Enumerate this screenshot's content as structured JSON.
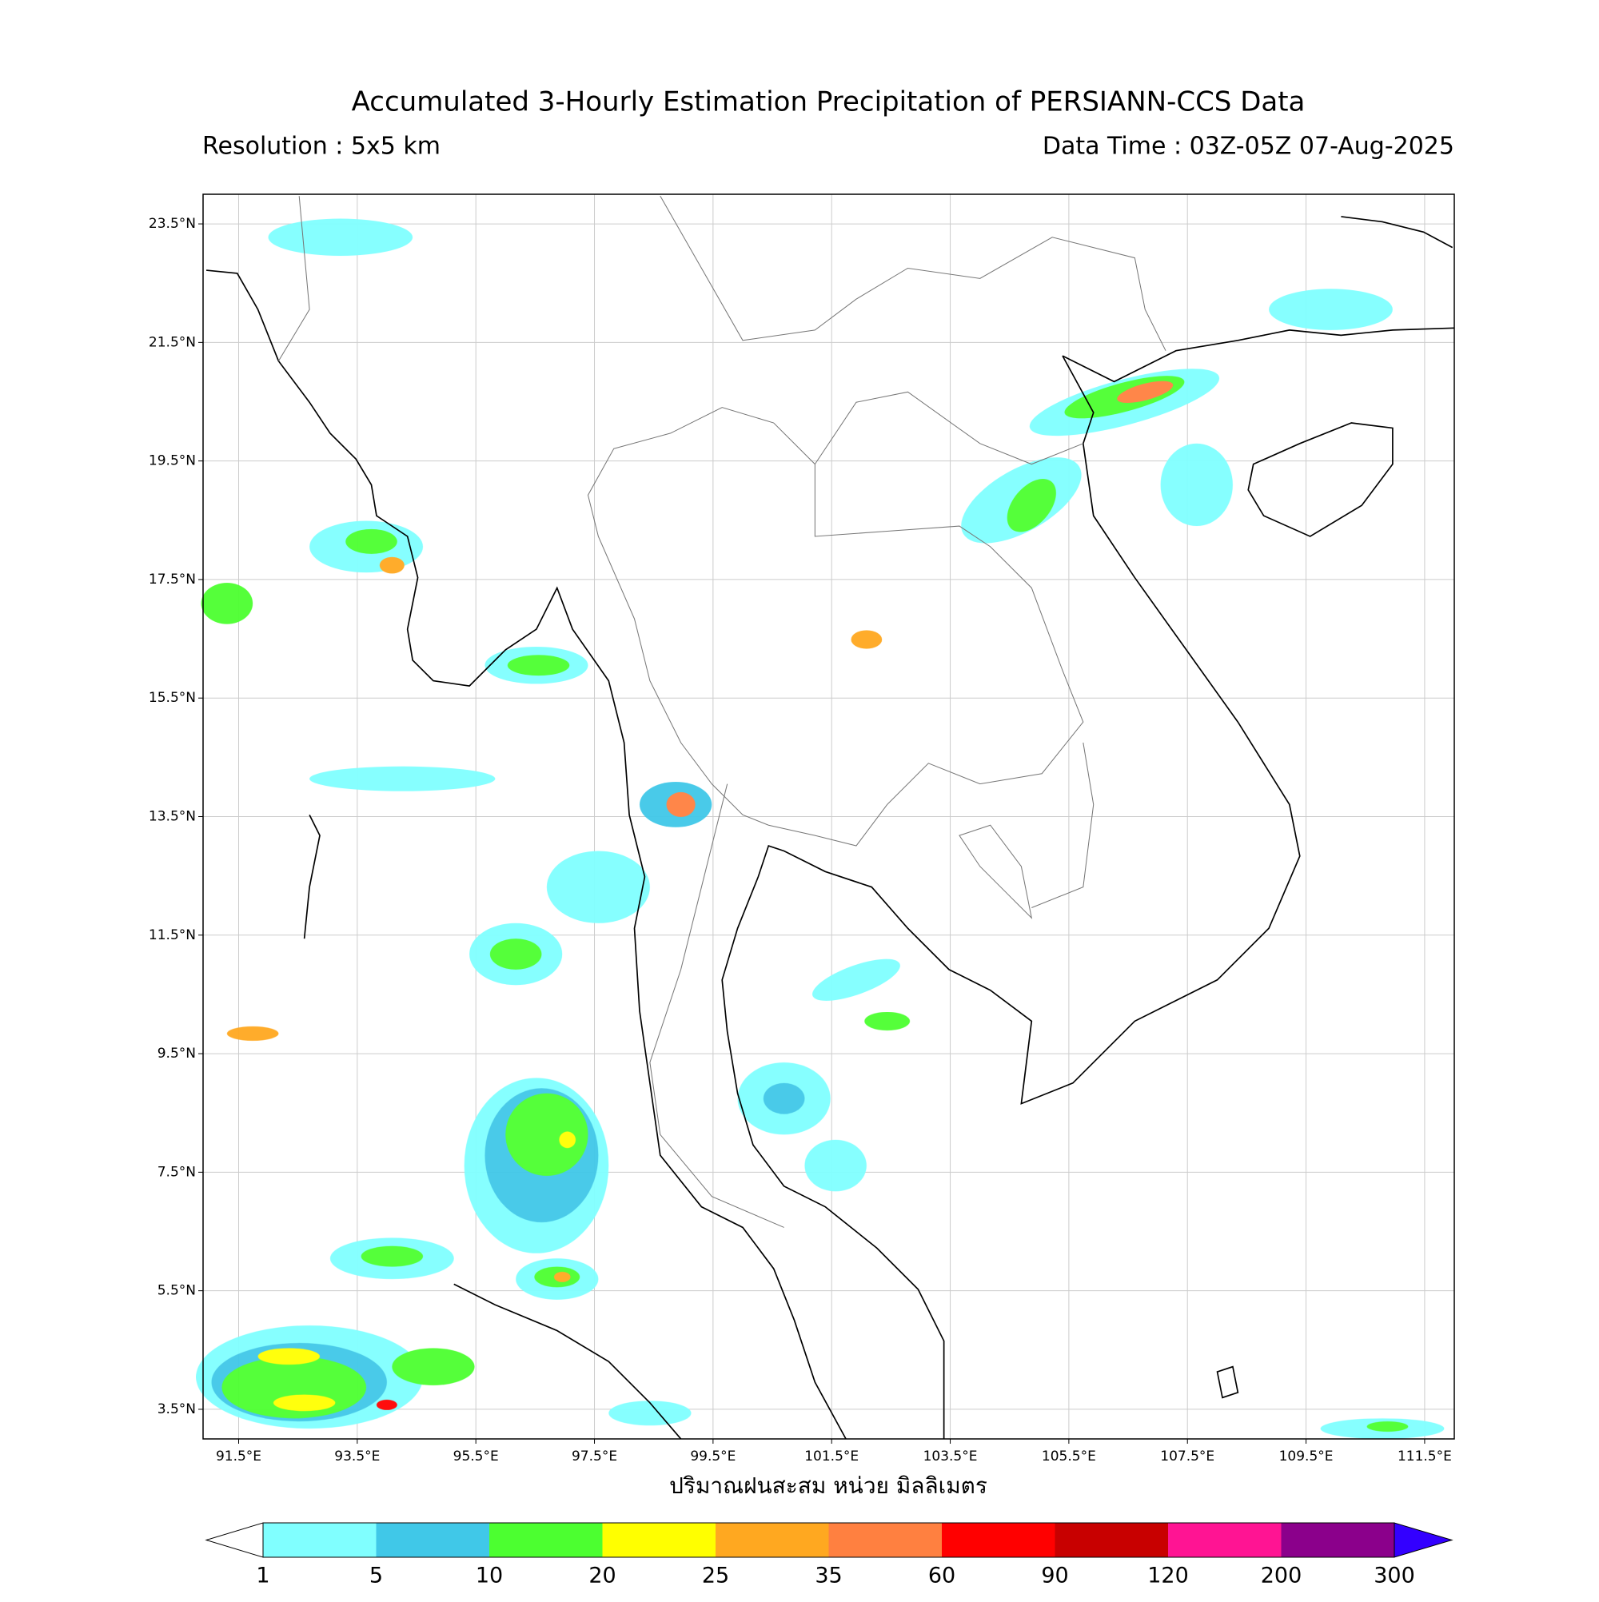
{
  "map": {
    "title": "Accumulated 3-Hourly Estimation Precipitation of PERSIANN-CCS Data",
    "resolution": "Resolution : 5x5 km",
    "data_time": "Data Time : 03Z-05Z 07-Aug-2025",
    "xlim": [
      90.9,
      112.0
    ],
    "ylim": [
      3.0,
      24.0
    ],
    "grid": true,
    "xticks": [
      {
        "value": 91.5,
        "label": "91.5°E"
      },
      {
        "value": 93.5,
        "label": "93.5°E"
      },
      {
        "value": 95.5,
        "label": "95.5°E"
      },
      {
        "value": 97.5,
        "label": "97.5°E"
      },
      {
        "value": 99.5,
        "label": "99.5°E"
      },
      {
        "value": 101.5,
        "label": "101.5°E"
      },
      {
        "value": 103.5,
        "label": "103.5°E"
      },
      {
        "value": 105.5,
        "label": "105.5°E"
      },
      {
        "value": 107.5,
        "label": "107.5°E"
      },
      {
        "value": 109.5,
        "label": "109.5°E"
      },
      {
        "value": 111.5,
        "label": "111.5°E"
      }
    ],
    "yticks": [
      {
        "value": 23.5,
        "label": "23.5°N"
      },
      {
        "value": 21.5,
        "label": "21.5°N"
      },
      {
        "value": 19.5,
        "label": "19.5°N"
      },
      {
        "value": 17.5,
        "label": "17.5°N"
      },
      {
        "value": 15.5,
        "label": "15.5°N"
      },
      {
        "value": 13.5,
        "label": "13.5°N"
      },
      {
        "value": 11.5,
        "label": "11.5°N"
      },
      {
        "value": 9.5,
        "label": "9.5°N"
      },
      {
        "value": 7.5,
        "label": "7.5°N"
      },
      {
        "value": 5.5,
        "label": "5.5°N"
      },
      {
        "value": 3.5,
        "label": "3.5°N"
      }
    ],
    "colorbar_label": "ปริมาณฝนสะสม หน่วย มิลลิเมตร",
    "colorbar_levels": [
      1,
      5,
      10,
      20,
      25,
      35,
      60,
      90,
      120,
      200,
      300
    ],
    "colorbar_colors": [
      "#80ffff",
      "#40c8e8",
      "#4cff30",
      "#ffff00",
      "#ffa820",
      "#ff8040",
      "#ff0000",
      "#c80000",
      "#ff1493",
      "#8b008b"
    ],
    "under_color": "#ffffff",
    "over_color": "#3300ff"
  }
}
